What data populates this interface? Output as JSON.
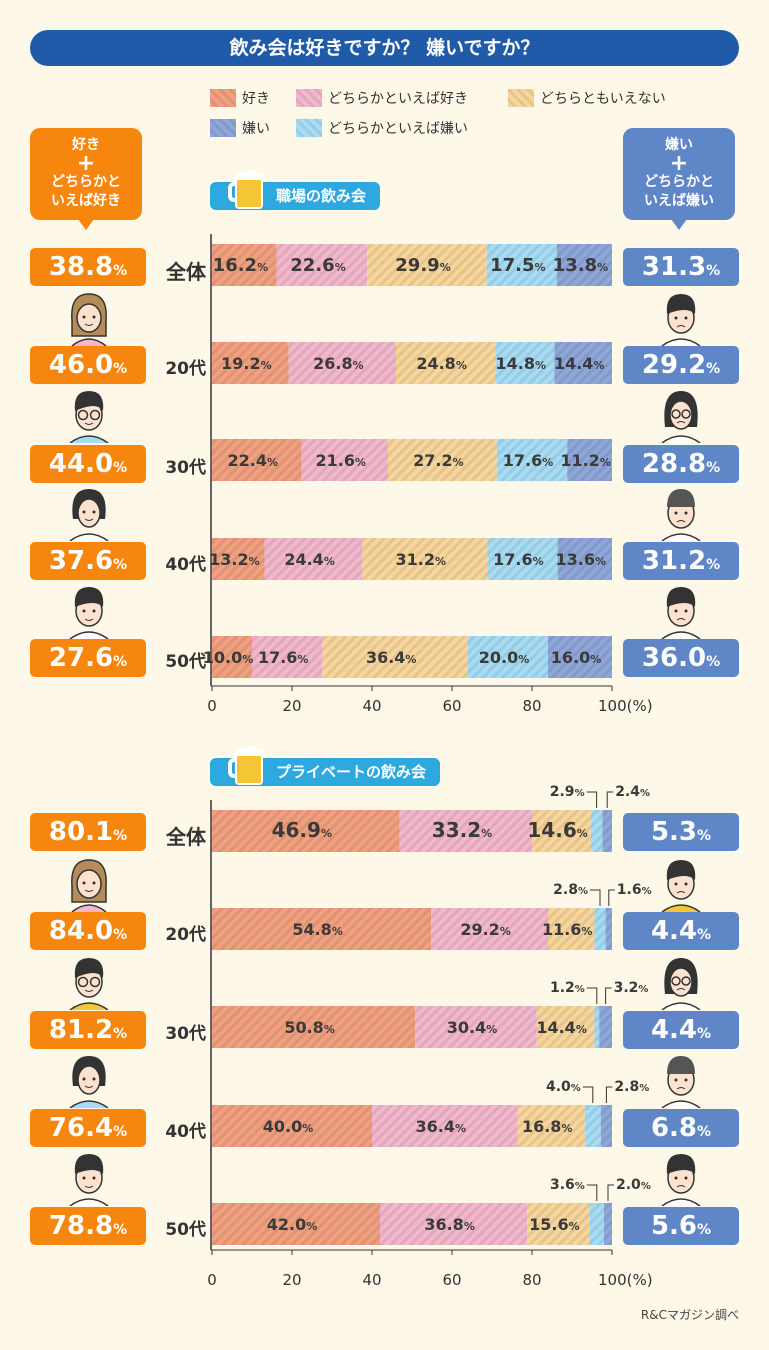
{
  "title": "飲み会は好きですか？ 嫌いですか？",
  "credit": "R&Cマガジン調べ",
  "colors": {
    "like": "#f0a07e",
    "somewhat_like": "#f3b7cc",
    "neutral": "#f8d59b",
    "dislike": "#8ea6d9",
    "somewhat_dislike": "#a6dcf3",
    "like_total": "#f7860f",
    "dislike_total": "#5f86c6",
    "title_bg": "#1f5ba8",
    "section_tag": "#2ea9e0"
  },
  "legend": [
    {
      "key": "like",
      "label": "好き"
    },
    {
      "key": "somewhat_like",
      "label": "どちらかといえば好き"
    },
    {
      "key": "neutral",
      "label": "どちらともいえない"
    },
    {
      "key": "dislike",
      "label": "嫌い"
    },
    {
      "key": "somewhat_dislike",
      "label": "どちらかといえば嫌い"
    }
  ],
  "left_box": {
    "line1": "好き",
    "plus": "+",
    "line2": "どちらかと",
    "line3": "いえば好き"
  },
  "right_box": {
    "line1": "嫌い",
    "plus": "+",
    "line2": "どちらかと",
    "line3": "いえば嫌い"
  },
  "sections": [
    {
      "title": "職場の飲み会"
    },
    {
      "title": "プライベートの飲み会"
    }
  ],
  "unit": "%",
  "chart_data": [
    {
      "type": "bar",
      "stacked": true,
      "orientation": "horizontal",
      "title": "職場の飲み会",
      "categories": [
        "全体",
        "20代",
        "30代",
        "40代",
        "50代"
      ],
      "xlim": [
        0,
        100
      ],
      "xticks": [
        "0",
        "20",
        "40",
        "60",
        "80",
        "100(%)"
      ],
      "series": [
        {
          "name": "好き",
          "values": [
            16.2,
            19.2,
            22.4,
            13.2,
            10.0
          ]
        },
        {
          "name": "どちらかといえば好き",
          "values": [
            22.6,
            26.8,
            21.6,
            24.4,
            17.6
          ]
        },
        {
          "name": "どちらともいえない",
          "values": [
            29.9,
            24.8,
            27.2,
            31.2,
            36.4
          ]
        },
        {
          "name": "どちらかといえば嫌い",
          "values": [
            17.5,
            14.8,
            17.6,
            17.6,
            20.0
          ]
        },
        {
          "name": "嫌い",
          "values": [
            13.8,
            14.4,
            11.2,
            13.6,
            16.0
          ]
        }
      ],
      "like_totals": [
        "38.8",
        "46.0",
        "44.0",
        "37.6",
        "27.6"
      ],
      "dislike_totals": [
        "31.3",
        "29.2",
        "28.8",
        "31.2",
        "36.0"
      ]
    },
    {
      "type": "bar",
      "stacked": true,
      "orientation": "horizontal",
      "title": "プライベートの飲み会",
      "categories": [
        "全体",
        "20代",
        "30代",
        "40代",
        "50代"
      ],
      "xlim": [
        0,
        100
      ],
      "xticks": [
        "0",
        "20",
        "40",
        "60",
        "80",
        "100(%)"
      ],
      "series": [
        {
          "name": "好き",
          "values": [
            46.9,
            54.8,
            50.8,
            40.0,
            42.0
          ]
        },
        {
          "name": "どちらかといえば好き",
          "values": [
            33.2,
            29.2,
            30.4,
            36.4,
            36.8
          ]
        },
        {
          "name": "どちらともいえない",
          "values": [
            14.6,
            11.6,
            14.4,
            16.8,
            15.6
          ]
        },
        {
          "name": "どちらかといえば嫌い",
          "values": [
            2.9,
            2.8,
            1.2,
            4.0,
            3.6
          ]
        },
        {
          "name": "嫌い",
          "values": [
            2.4,
            1.6,
            3.2,
            2.8,
            2.0
          ]
        }
      ],
      "like_totals": [
        "80.1",
        "84.0",
        "81.2",
        "76.4",
        "78.8"
      ],
      "dislike_totals": [
        "5.3",
        "4.4",
        "4.4",
        "6.8",
        "5.6"
      ]
    }
  ]
}
